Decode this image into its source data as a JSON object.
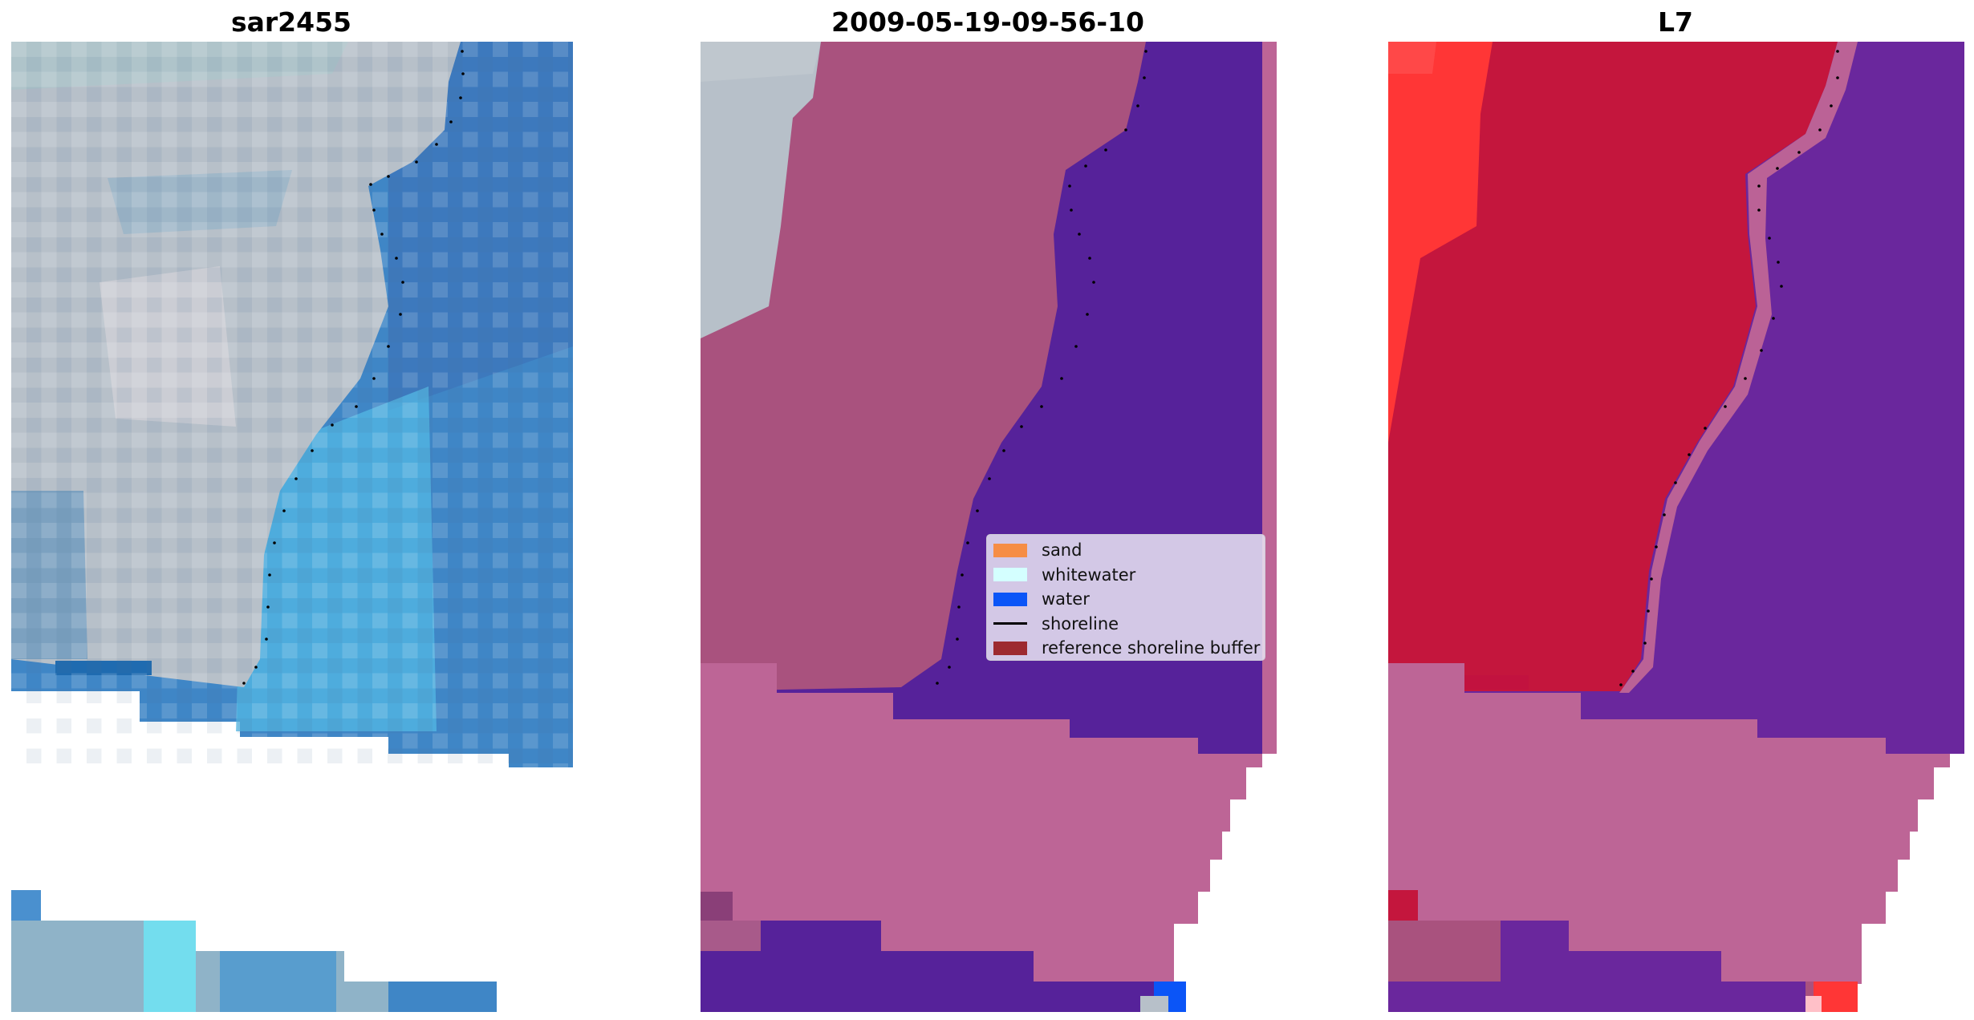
{
  "panels": {
    "left_title": "sar2455",
    "middle_title": "2009-05-19-09-56-10",
    "right_title": "L7"
  },
  "legend": {
    "items": [
      {
        "label": "sand",
        "color": "#f68d45",
        "kind": "patch"
      },
      {
        "label": "whitewater",
        "color": "#d4ffff",
        "kind": "patch"
      },
      {
        "label": "water",
        "color": "#0b55f7",
        "kind": "patch"
      },
      {
        "label": "shoreline",
        "color": "#000000",
        "kind": "line"
      },
      {
        "label": "reference shoreline buffer",
        "color": "#9d2a30",
        "kind": "patch"
      }
    ]
  },
  "colors": {
    "land_rgb": "#b7c0c9",
    "water_rgb": "#3f86c6",
    "shallow_water": "#54b8e4",
    "classified_land": "#a9527e",
    "classified_water": "#56229a",
    "classified_nodata": "#bd6596",
    "mndwi_land": "#c4163d",
    "mndwi_water": "#6a279d",
    "mndwi_bright": "#ff3636",
    "shoreline_points": "#000000"
  }
}
